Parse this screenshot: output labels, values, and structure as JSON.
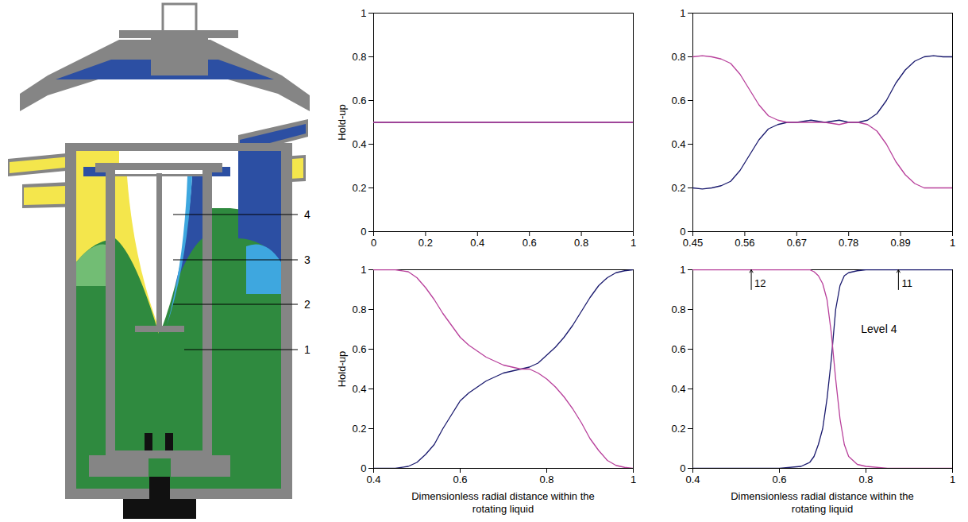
{
  "diagram": {
    "labels": [
      "4",
      "3",
      "2",
      "1"
    ]
  },
  "chart_data": [
    {
      "type": "line",
      "y_label": "Hold-up",
      "xlim": [
        0,
        1
      ],
      "xticks": [
        0,
        0.2,
        0.4,
        0.6,
        0.8,
        1
      ],
      "ylim": [
        0,
        1
      ],
      "yticks": [
        0,
        0.2,
        0.4,
        0.6,
        0.8,
        1
      ],
      "series": [
        {
          "color": "#1a1a6e",
          "x": [
            0,
            1
          ],
          "values": [
            0.5,
            0.5
          ]
        },
        {
          "color": "#b8409b",
          "x": [
            0,
            1
          ],
          "values": [
            0.5,
            0.5
          ]
        }
      ]
    },
    {
      "type": "line",
      "xlim": [
        0.45,
        1
      ],
      "xticks": [
        0.45,
        0.56,
        0.67,
        0.78,
        0.89,
        1
      ],
      "ylim": [
        0,
        1
      ],
      "yticks": [
        0,
        0.2,
        0.4,
        0.6,
        0.8,
        1
      ],
      "series": [
        {
          "color": "#1a1a6e",
          "x": [
            0.45,
            0.47,
            0.49,
            0.51,
            0.53,
            0.55,
            0.57,
            0.59,
            0.61,
            0.63,
            0.65,
            0.67,
            0.7,
            0.73,
            0.76,
            0.78,
            0.8,
            0.82,
            0.84,
            0.86,
            0.88,
            0.9,
            0.92,
            0.94,
            0.96,
            0.98,
            1
          ],
          "values": [
            0.2,
            0.195,
            0.2,
            0.21,
            0.23,
            0.28,
            0.35,
            0.42,
            0.47,
            0.49,
            0.5,
            0.5,
            0.51,
            0.5,
            0.51,
            0.5,
            0.5,
            0.51,
            0.54,
            0.6,
            0.68,
            0.74,
            0.78,
            0.8,
            0.805,
            0.8,
            0.8
          ]
        },
        {
          "color": "#b8409b",
          "x": [
            0.45,
            0.47,
            0.49,
            0.51,
            0.53,
            0.55,
            0.57,
            0.59,
            0.61,
            0.63,
            0.65,
            0.67,
            0.7,
            0.73,
            0.76,
            0.78,
            0.8,
            0.82,
            0.84,
            0.86,
            0.88,
            0.9,
            0.92,
            0.94,
            0.96,
            0.98,
            1
          ],
          "values": [
            0.8,
            0.805,
            0.8,
            0.79,
            0.77,
            0.72,
            0.65,
            0.58,
            0.53,
            0.51,
            0.5,
            0.5,
            0.5,
            0.5,
            0.49,
            0.5,
            0.5,
            0.49,
            0.46,
            0.4,
            0.32,
            0.26,
            0.22,
            0.2,
            0.2,
            0.2,
            0.2
          ]
        }
      ]
    },
    {
      "type": "line",
      "y_label": "Hold-up",
      "x_label": "Dimensionless radial distance within the rotating liquid",
      "xlim": [
        0.4,
        1
      ],
      "xticks": [
        0.4,
        0.6,
        0.8,
        1
      ],
      "ylim": [
        0,
        1
      ],
      "yticks": [
        0,
        0.2,
        0.4,
        0.6,
        0.8,
        1
      ],
      "series": [
        {
          "color": "#1a1a6e",
          "x": [
            0.4,
            0.45,
            0.48,
            0.5,
            0.52,
            0.54,
            0.56,
            0.58,
            0.6,
            0.62,
            0.64,
            0.66,
            0.68,
            0.7,
            0.72,
            0.74,
            0.76,
            0.78,
            0.8,
            0.82,
            0.84,
            0.86,
            0.88,
            0.9,
            0.92,
            0.94,
            0.96,
            0.98,
            1
          ],
          "values": [
            0,
            0,
            0.01,
            0.03,
            0.07,
            0.12,
            0.2,
            0.27,
            0.34,
            0.38,
            0.41,
            0.44,
            0.46,
            0.48,
            0.49,
            0.5,
            0.51,
            0.53,
            0.57,
            0.61,
            0.66,
            0.72,
            0.79,
            0.86,
            0.92,
            0.96,
            0.985,
            0.995,
            1
          ]
        },
        {
          "color": "#b8409b",
          "x": [
            0.4,
            0.45,
            0.48,
            0.5,
            0.52,
            0.54,
            0.56,
            0.58,
            0.6,
            0.62,
            0.64,
            0.66,
            0.68,
            0.7,
            0.72,
            0.74,
            0.76,
            0.78,
            0.8,
            0.82,
            0.84,
            0.86,
            0.88,
            0.9,
            0.92,
            0.94,
            0.96,
            0.98,
            1
          ],
          "values": [
            1,
            1,
            0.99,
            0.96,
            0.91,
            0.85,
            0.78,
            0.72,
            0.66,
            0.62,
            0.59,
            0.56,
            0.54,
            0.52,
            0.51,
            0.5,
            0.5,
            0.48,
            0.45,
            0.41,
            0.36,
            0.3,
            0.23,
            0.15,
            0.09,
            0.04,
            0.015,
            0.005,
            0
          ]
        }
      ]
    },
    {
      "type": "line",
      "x_label": "Dimensionless radial distance within the rotating liquid",
      "xlim": [
        0.4,
        1
      ],
      "xticks": [
        0.4,
        0.6,
        0.8,
        1
      ],
      "ylim": [
        0,
        1
      ],
      "yticks": [
        0,
        0.2,
        0.4,
        0.6,
        0.8,
        1
      ],
      "series": [
        {
          "color": "#1a1a6e",
          "x": [
            0.4,
            0.5,
            0.6,
            0.65,
            0.67,
            0.68,
            0.69,
            0.7,
            0.71,
            0.72,
            0.73,
            0.74,
            0.75,
            0.76,
            0.78,
            0.8,
            0.85,
            0.9,
            1
          ],
          "values": [
            0,
            0,
            0,
            0.01,
            0.03,
            0.06,
            0.12,
            0.2,
            0.35,
            0.55,
            0.8,
            0.92,
            0.97,
            0.985,
            0.995,
            1,
            1,
            1,
            1
          ]
        },
        {
          "color": "#b8409b",
          "x": [
            0.4,
            0.5,
            0.6,
            0.65,
            0.67,
            0.68,
            0.69,
            0.7,
            0.71,
            0.72,
            0.73,
            0.74,
            0.75,
            0.76,
            0.78,
            0.8,
            0.85,
            0.9,
            1
          ],
          "values": [
            1,
            1,
            1,
            1,
            1,
            0.99,
            0.97,
            0.93,
            0.85,
            0.68,
            0.45,
            0.25,
            0.12,
            0.06,
            0.02,
            0.01,
            0,
            0,
            0
          ]
        }
      ],
      "annotations": [
        {
          "text": "12",
          "x": 0.535,
          "y": 1,
          "marker": "arrow"
        },
        {
          "text": "11",
          "x": 0.875,
          "y": 1,
          "marker": "arrow"
        },
        {
          "text": "Level 4",
          "x": 0.83,
          "y": 0.7
        }
      ]
    }
  ]
}
